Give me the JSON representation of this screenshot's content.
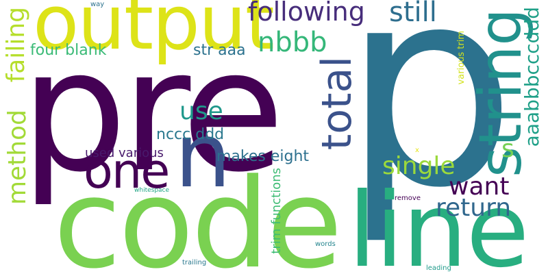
{
  "words": [
    {
      "text": "pre",
      "color": "#440154"
    },
    {
      "text": "p",
      "color": "#2c728e"
    },
    {
      "text": "code",
      "color": "#7ad151"
    },
    {
      "text": "line",
      "color": "#28ae80"
    },
    {
      "text": "output",
      "color": "#dde318"
    },
    {
      "text": "n",
      "color": "#3b528b"
    },
    {
      "text": "one",
      "color": "#440154"
    },
    {
      "text": "string",
      "color": "#21918c"
    },
    {
      "text": "total",
      "color": "#3b528b"
    },
    {
      "text": "following",
      "color": "#472d7b"
    },
    {
      "text": "failing",
      "color": "#b5de2b"
    },
    {
      "text": "method",
      "color": "#a2da37"
    },
    {
      "text": "still",
      "color": "#2e6e8e"
    },
    {
      "text": "nbbb",
      "color": "#35b779"
    },
    {
      "text": "four blank",
      "color": "#3aba76"
    },
    {
      "text": "str aaa",
      "color": "#2c728e"
    },
    {
      "text": "use",
      "color": "#1f988b"
    },
    {
      "text": "nccc ddd",
      "color": "#2a788e"
    },
    {
      "text": "makes eight",
      "color": "#2d708e"
    },
    {
      "text": "used various",
      "color": "#481a6c"
    },
    {
      "text": "single",
      "color": "#9bd93c"
    },
    {
      "text": "s",
      "color": "#75d054"
    },
    {
      "text": "aaabbbcccddd",
      "color": "#1fa088"
    },
    {
      "text": "want",
      "color": "#440154"
    },
    {
      "text": "return",
      "color": "#30678d"
    },
    {
      "text": "various trim",
      "color": "#d2e21b"
    },
    {
      "text": "trim functions",
      "color": "#3dbc74"
    },
    {
      "text": "way",
      "color": "#2c728e"
    },
    {
      "text": "x",
      "color": "#e5e419"
    },
    {
      "text": "whitespace",
      "color": "#21a685"
    },
    {
      "text": "remove",
      "color": "#440154"
    },
    {
      "text": "words",
      "color": "#25858e"
    },
    {
      "text": "trailing",
      "color": "#2a788e"
    },
    {
      "text": "leading",
      "color": "#1f9a8a"
    }
  ]
}
